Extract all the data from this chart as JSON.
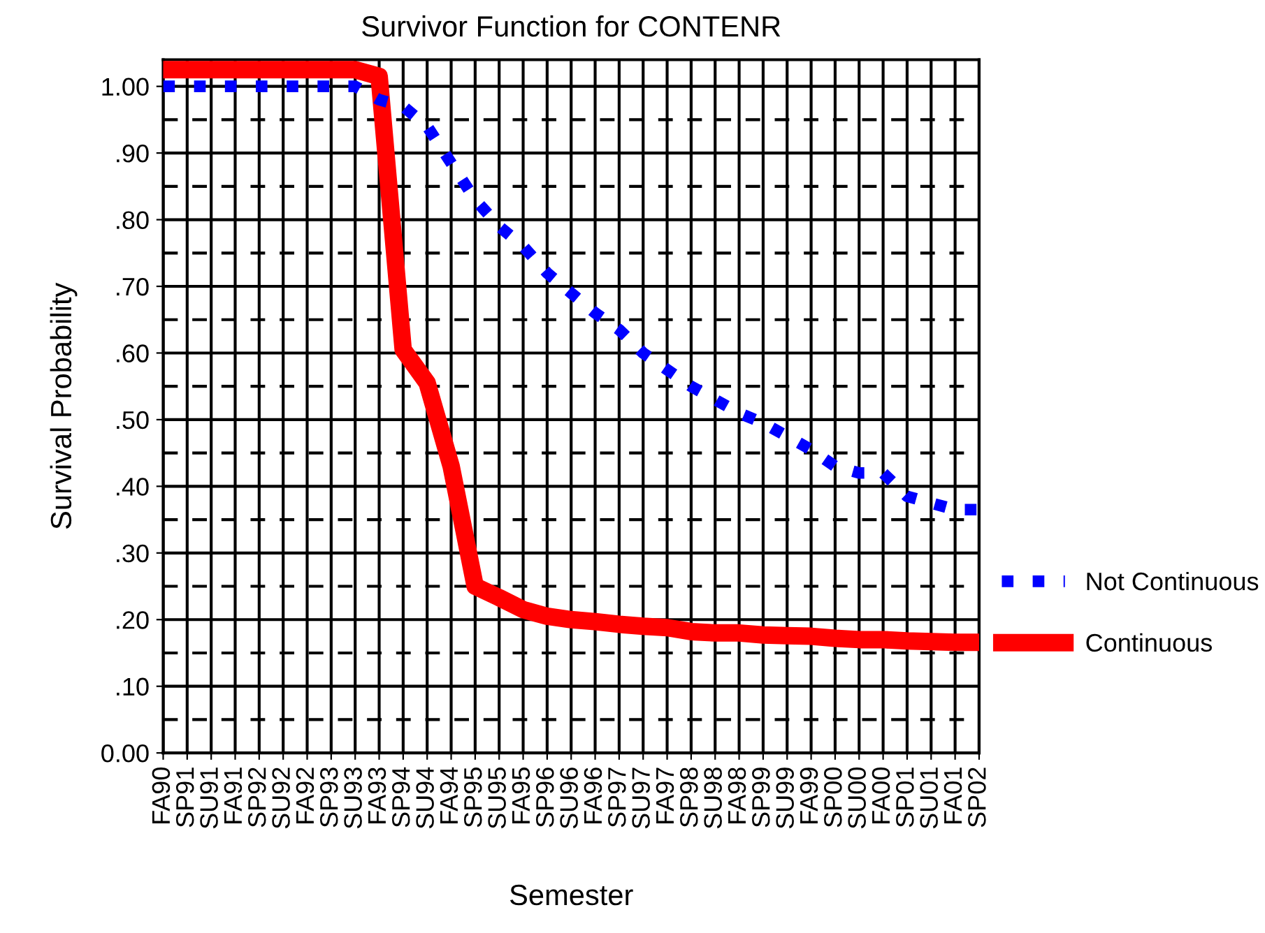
{
  "chart_data": {
    "type": "line",
    "title": "Survivor Function for CONTENR",
    "xlabel": "Semester",
    "ylabel": "Survival Probability",
    "categories": [
      "FA90",
      "SP91",
      "SU91",
      "FA91",
      "SP92",
      "SU92",
      "FA92",
      "SP93",
      "SU93",
      "FA93",
      "SP94",
      "SU94",
      "FA94",
      "SP95",
      "SU95",
      "FA95",
      "SP96",
      "SU96",
      "FA96",
      "SP97",
      "SU97",
      "FA97",
      "SP98",
      "SU98",
      "FA98",
      "SP99",
      "SU99",
      "FA99",
      "SP00",
      "SU00",
      "FA00",
      "SP01",
      "SU01",
      "FA01",
      "SP02"
    ],
    "series": [
      {
        "name": "Not Continuous",
        "color": "#0000ff",
        "line_style": "dotted",
        "values": [
          1.0,
          1.0,
          1.0,
          1.0,
          1.0,
          1.0,
          1.0,
          1.0,
          1.0,
          0.98,
          0.97,
          0.94,
          0.885,
          0.83,
          0.79,
          0.76,
          0.72,
          0.69,
          0.66,
          0.635,
          0.6,
          0.575,
          0.55,
          0.53,
          0.51,
          0.495,
          0.475,
          0.455,
          0.43,
          0.42,
          0.42,
          0.385,
          0.375,
          0.365,
          0.365
        ]
      },
      {
        "name": "Continuous",
        "color": "#ff0000",
        "line_style": "solid",
        "values": [
          1.025,
          1.025,
          1.025,
          1.025,
          1.025,
          1.025,
          1.025,
          1.025,
          1.025,
          1.015,
          0.605,
          0.555,
          0.43,
          0.25,
          0.233,
          0.215,
          0.205,
          0.2,
          0.197,
          0.193,
          0.19,
          0.188,
          0.182,
          0.18,
          0.18,
          0.177,
          0.176,
          0.175,
          0.172,
          0.17,
          0.17,
          0.168,
          0.167,
          0.166,
          0.166
        ]
      }
    ],
    "ylim": [
      0,
      1.04
    ],
    "yticks": [
      {
        "value": 0,
        "label": "0.00"
      },
      {
        "value": 0.1,
        "label": ".10"
      },
      {
        "value": 0.2,
        "label": ".20"
      },
      {
        "value": 0.3,
        "label": ".30"
      },
      {
        "value": 0.4,
        "label": ".40"
      },
      {
        "value": 0.5,
        "label": ".50"
      },
      {
        "value": 0.6,
        "label": ".60"
      },
      {
        "value": 0.7,
        "label": ".70"
      },
      {
        "value": 0.8,
        "label": ".80"
      },
      {
        "value": 0.9,
        "label": ".90"
      },
      {
        "value": 1.0,
        "label": "1.00"
      }
    ],
    "grid": true,
    "legend": "right",
    "marker": "none"
  }
}
